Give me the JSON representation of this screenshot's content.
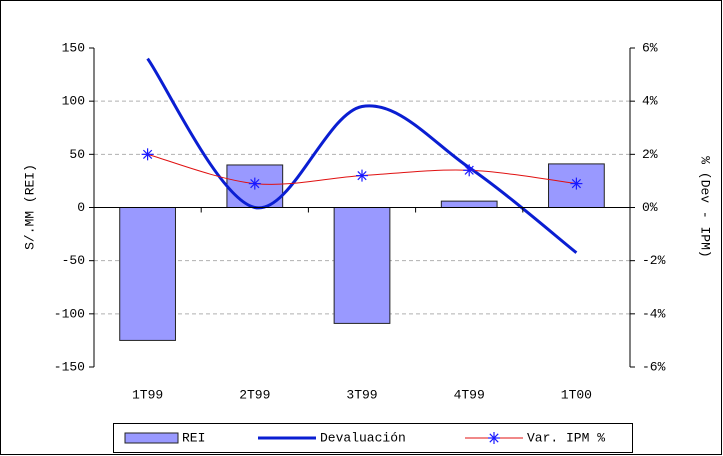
{
  "chart_data": {
    "type": "bar-line",
    "categories": [
      "1T99",
      "2T99",
      "3T99",
      "4T99",
      "1T00"
    ],
    "series": [
      {
        "name": "REI",
        "type": "bar",
        "color": "#9999ff",
        "values": [
          -125,
          40,
          -109,
          6,
          41
        ]
      },
      {
        "name": "Devaluación",
        "type": "line",
        "axis": "y2",
        "color": "#0a1ed2",
        "values": [
          5.6,
          0.0,
          3.8,
          1.5,
          -1.7
        ]
      },
      {
        "name": "Var. IPM %",
        "type": "line-marker",
        "axis": "y2",
        "color": "#e01010",
        "marker_color": "#1a1aff",
        "values": [
          2.0,
          0.9,
          1.2,
          1.4,
          0.9
        ]
      }
    ],
    "ylabel": "S/.MM (REI)",
    "y2label": "% (Dev - IPM)",
    "ylim": [
      -150,
      150
    ],
    "yticks": [
      -150,
      -100,
      -50,
      0,
      50,
      100,
      150
    ],
    "y2lim": [
      -6,
      6
    ],
    "y2ticks": [
      {
        "value": -6,
        "label": "-6%"
      },
      {
        "value": -4,
        "label": "-4%"
      },
      {
        "value": -2,
        "label": "-2%"
      },
      {
        "value": 0,
        "label": "0%"
      },
      {
        "value": 2,
        "label": "2%"
      },
      {
        "value": 4,
        "label": "4%"
      },
      {
        "value": 6,
        "label": "6%"
      }
    ],
    "grid": true,
    "legend": "bottom"
  }
}
